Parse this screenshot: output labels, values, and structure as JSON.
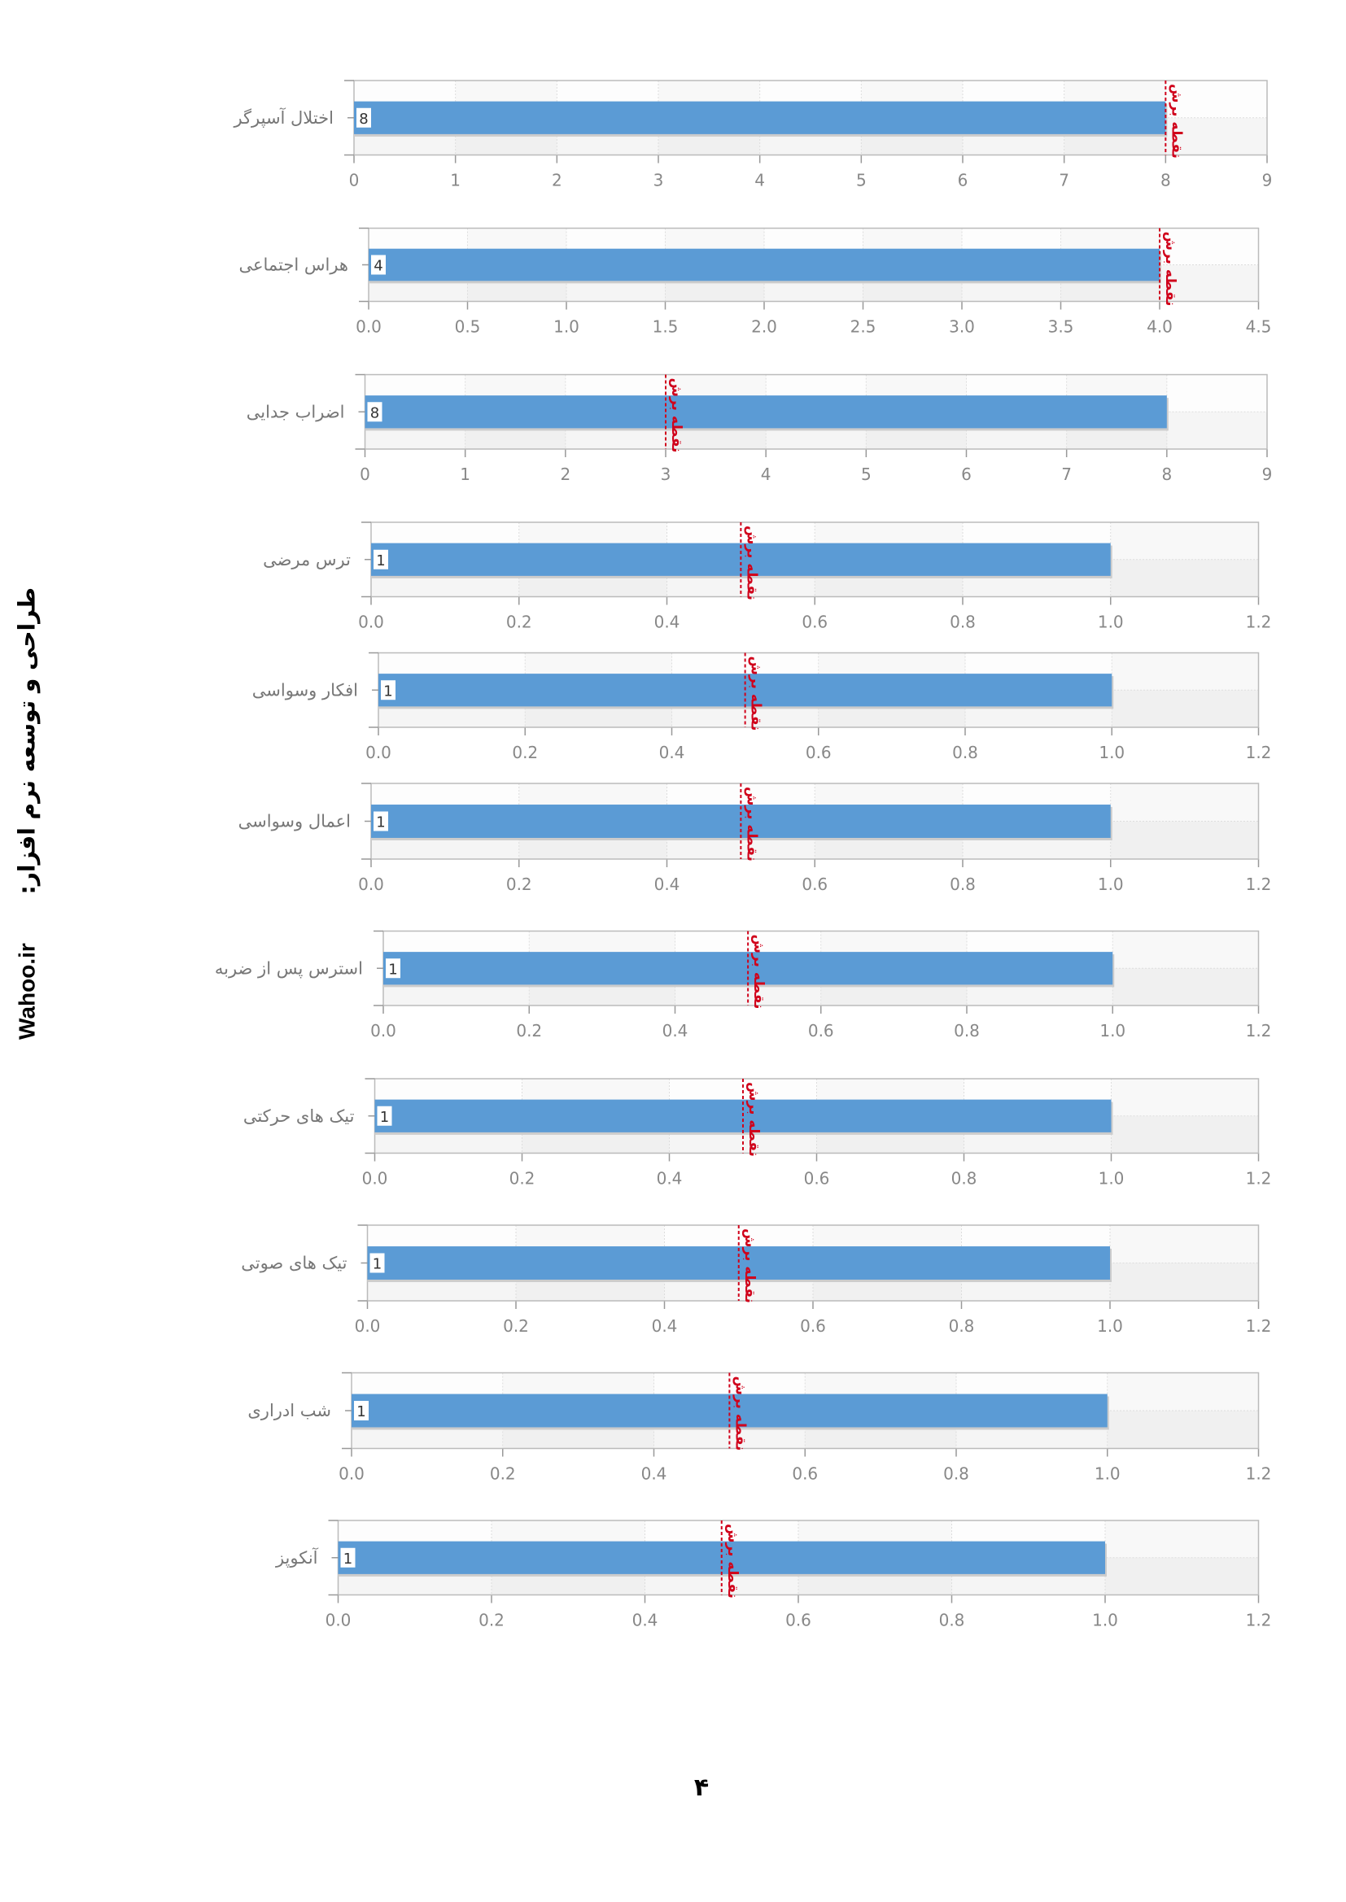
{
  "page_number": "۴",
  "side_credit": {
    "label": "طراحی و توسعه نرم افزار:",
    "site": "Wahoo.ir"
  },
  "colors": {
    "bar": "#5b9bd5",
    "cutoff": "#d0021b",
    "axis": "#999999",
    "label": "#777777"
  },
  "chart_data": [
    {
      "type": "bar",
      "orientation": "horizontal",
      "category": "اختلال آسپرگر",
      "value": 8,
      "cutoff": 8,
      "cutoff_label": "نقطه برش",
      "xlim": [
        0,
        9
      ],
      "ticks": [
        "0",
        "1",
        "2",
        "3",
        "4",
        "5",
        "6",
        "7",
        "8",
        "9"
      ]
    },
    {
      "type": "bar",
      "orientation": "horizontal",
      "category": "هراس اجتماعی",
      "value": 4,
      "cutoff": 4,
      "cutoff_label": "نقطه برش",
      "xlim": [
        0,
        4.5
      ],
      "ticks": [
        "0.0",
        "0.5",
        "1.0",
        "1.5",
        "2.0",
        "2.5",
        "3.0",
        "3.5",
        "4.0",
        "4.5"
      ]
    },
    {
      "type": "bar",
      "orientation": "horizontal",
      "category": "اضراب جدایی",
      "value": 8,
      "cutoff": 3,
      "cutoff_label": "نقطه برش",
      "xlim": [
        0,
        9
      ],
      "ticks": [
        "0",
        "1",
        "2",
        "3",
        "4",
        "5",
        "6",
        "7",
        "8",
        "9"
      ]
    },
    {
      "type": "bar",
      "orientation": "horizontal",
      "category": "ترس مرضی",
      "value": 1,
      "cutoff": 0.5,
      "cutoff_label": "نقطه برش",
      "xlim": [
        0,
        1.2
      ],
      "ticks": [
        "0.0",
        "0.2",
        "0.4",
        "0.6",
        "0.8",
        "1.0",
        "1.2"
      ]
    },
    {
      "type": "bar",
      "orientation": "horizontal",
      "category": "افکار وسواسی",
      "value": 1,
      "cutoff": 0.5,
      "cutoff_label": "نقطه برش",
      "xlim": [
        0,
        1.2
      ],
      "ticks": [
        "0.0",
        "0.2",
        "0.4",
        "0.6",
        "0.8",
        "1.0",
        "1.2"
      ]
    },
    {
      "type": "bar",
      "orientation": "horizontal",
      "category": "اعمال وسواسی",
      "value": 1,
      "cutoff": 0.5,
      "cutoff_label": "نقطه برش",
      "xlim": [
        0,
        1.2
      ],
      "ticks": [
        "0.0",
        "0.2",
        "0.4",
        "0.6",
        "0.8",
        "1.0",
        "1.2"
      ]
    },
    {
      "type": "bar",
      "orientation": "horizontal",
      "category": "استرس پس از ضربه",
      "value": 1,
      "cutoff": 0.5,
      "cutoff_label": "نقطه برش",
      "xlim": [
        0,
        1.2
      ],
      "ticks": [
        "0.0",
        "0.2",
        "0.4",
        "0.6",
        "0.8",
        "1.0",
        "1.2"
      ]
    },
    {
      "type": "bar",
      "orientation": "horizontal",
      "category": "تیک های حرکتی",
      "value": 1,
      "cutoff": 0.5,
      "cutoff_label": "نقطه برش",
      "xlim": [
        0,
        1.2
      ],
      "ticks": [
        "0.0",
        "0.2",
        "0.4",
        "0.6",
        "0.8",
        "1.0",
        "1.2"
      ]
    },
    {
      "type": "bar",
      "orientation": "horizontal",
      "category": "تیک های صوتی",
      "value": 1,
      "cutoff": 0.5,
      "cutoff_label": "نقطه برش",
      "xlim": [
        0,
        1.2
      ],
      "ticks": [
        "0.0",
        "0.2",
        "0.4",
        "0.6",
        "0.8",
        "1.0",
        "1.2"
      ]
    },
    {
      "type": "bar",
      "orientation": "horizontal",
      "category": "شب ادراری",
      "value": 1,
      "cutoff": 0.5,
      "cutoff_label": "نقطه برش",
      "xlim": [
        0,
        1.2
      ],
      "ticks": [
        "0.0",
        "0.2",
        "0.4",
        "0.6",
        "0.8",
        "1.0",
        "1.2"
      ]
    },
    {
      "type": "bar",
      "orientation": "horizontal",
      "category": "آنکوپز",
      "value": 1,
      "cutoff": 0.5,
      "cutoff_label": "نقطه برش",
      "xlim": [
        0,
        1.2
      ],
      "ticks": [
        "0.0",
        "0.2",
        "0.4",
        "0.6",
        "0.8",
        "1.0",
        "1.2"
      ]
    }
  ]
}
